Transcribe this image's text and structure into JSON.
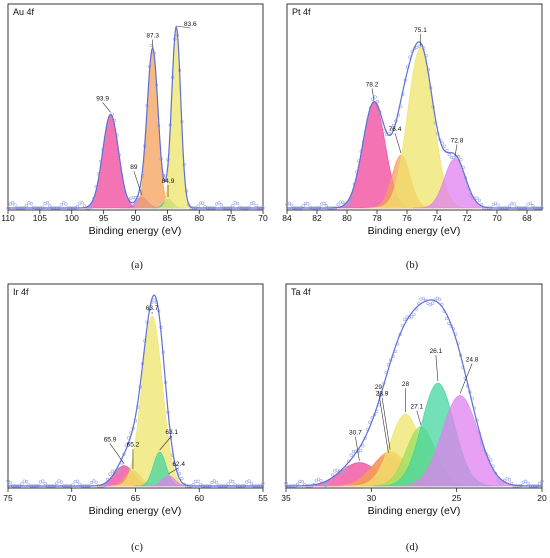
{
  "chart_data": [
    {
      "type": "line",
      "title": "Au 4f",
      "xlabel": "Binding energy (eV)",
      "xlim": [
        110,
        70
      ],
      "x_ticks": [
        110,
        105,
        100,
        95,
        90,
        85,
        80,
        75,
        70
      ],
      "sublabel": "(a)",
      "peaks": [
        {
          "label": "93.9",
          "center": 93.9,
          "height": 0.52,
          "width": 1.25,
          "color": "#f0449a"
        },
        {
          "label": "89",
          "center": 89.0,
          "height": 0.06,
          "width": 0.9,
          "color": "#c070e0"
        },
        {
          "label": "87.3",
          "center": 87.3,
          "height": 0.88,
          "width": 0.85,
          "color": "#f5a05a"
        },
        {
          "label": "84.9",
          "center": 84.9,
          "height": 0.05,
          "width": 0.7,
          "color": "#44d6a0"
        },
        {
          "label": "83.6",
          "center": 83.6,
          "height": 1.0,
          "width": 0.7,
          "color": "#efe46a"
        }
      ]
    },
    {
      "type": "line",
      "title": "Pt 4f",
      "xlabel": "Binding energy (eV)",
      "xlim": [
        84,
        67
      ],
      "x_ticks": [
        84,
        82,
        80,
        78,
        76,
        74,
        72,
        70,
        68
      ],
      "sublabel": "(b)",
      "peaks": [
        {
          "label": "78.2",
          "center": 78.2,
          "height": 0.66,
          "width": 0.75,
          "color": "#f0449a"
        },
        {
          "label": "76.4",
          "center": 76.4,
          "height": 0.33,
          "width": 0.6,
          "color": "#f5a05a"
        },
        {
          "label": "75.1",
          "center": 75.1,
          "height": 1.0,
          "width": 0.85,
          "color": "#efe46a"
        },
        {
          "label": "72.8",
          "center": 72.8,
          "height": 0.31,
          "width": 0.7,
          "color": "#e080f0"
        }
      ]
    },
    {
      "type": "line",
      "title": "Ir 4f",
      "xlabel": "Binding energy (eV)",
      "xlim": [
        75,
        55
      ],
      "x_ticks": [
        75,
        70,
        65,
        60,
        55
      ],
      "sublabel": "(c)",
      "peaks": [
        {
          "label": "65.9",
          "center": 65.9,
          "height": 0.12,
          "width": 0.75,
          "color": "#f0449a"
        },
        {
          "label": "65.2",
          "center": 65.2,
          "height": 0.09,
          "width": 0.6,
          "color": "#f5a05a"
        },
        {
          "label": "63.7",
          "center": 63.7,
          "height": 1.0,
          "width": 0.8,
          "color": "#efe46a"
        },
        {
          "label": "63.1",
          "center": 63.1,
          "height": 0.2,
          "width": 0.5,
          "color": "#44d6a0"
        },
        {
          "label": "62.4",
          "center": 62.4,
          "height": 0.06,
          "width": 0.5,
          "color": "#e080f0"
        }
      ]
    },
    {
      "type": "line",
      "title": "Ta 4f",
      "xlabel": "Binding energy (eV)",
      "xlim": [
        35,
        20
      ],
      "x_ticks": [
        35,
        30,
        25,
        20
      ],
      "sublabel": "(d)",
      "peaks": [
        {
          "label": "30.7",
          "center": 30.7,
          "height": 0.15,
          "width": 1.1,
          "color": "#f0449a"
        },
        {
          "label": "29",
          "center": 29.0,
          "height": 0.2,
          "width": 1.0,
          "color": "#f0806a"
        },
        {
          "label": "28.9",
          "center": 28.9,
          "height": 0.22,
          "width": 1.0,
          "color": "#f5a05a"
        },
        {
          "label": "28",
          "center": 28.0,
          "height": 0.46,
          "width": 0.9,
          "color": "#efe46a"
        },
        {
          "label": "27.1",
          "center": 27.1,
          "height": 0.38,
          "width": 0.85,
          "color": "#9ae060"
        },
        {
          "label": "26.1",
          "center": 26.1,
          "height": 0.66,
          "width": 0.95,
          "color": "#44d6a0"
        },
        {
          "label": "24.8",
          "center": 24.8,
          "height": 0.58,
          "width": 1.05,
          "color": "#e080f0"
        }
      ]
    }
  ]
}
